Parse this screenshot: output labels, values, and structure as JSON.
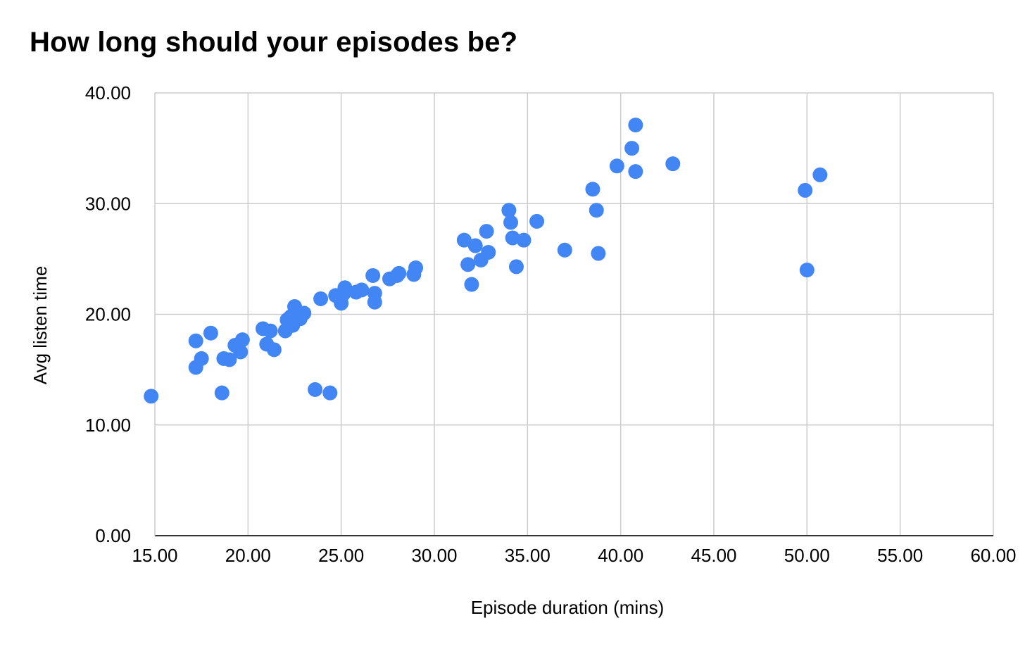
{
  "chart_data": {
    "type": "scatter",
    "title": "How long should your episodes be?",
    "xlabel": "Episode duration (mins)",
    "ylabel": "Avg listen time",
    "xlim": [
      15,
      60
    ],
    "ylim": [
      0,
      40
    ],
    "x_ticks": [
      "15.00",
      "20.00",
      "25.00",
      "30.00",
      "35.00",
      "40.00",
      "45.00",
      "50.00",
      "55.00",
      "60.00"
    ],
    "y_ticks": [
      "0.00",
      "10.00",
      "20.00",
      "30.00",
      "40.00"
    ],
    "grid": true,
    "legend": "none",
    "color": "#4285F4",
    "points": [
      [
        14.8,
        12.6
      ],
      [
        17.2,
        17.6
      ],
      [
        17.2,
        15.2
      ],
      [
        17.5,
        16.0
      ],
      [
        18.0,
        18.3
      ],
      [
        18.6,
        12.9
      ],
      [
        18.7,
        16.0
      ],
      [
        19.0,
        15.9
      ],
      [
        19.3,
        17.2
      ],
      [
        19.6,
        16.6
      ],
      [
        19.7,
        17.7
      ],
      [
        20.8,
        18.7
      ],
      [
        21.0,
        17.3
      ],
      [
        21.2,
        18.5
      ],
      [
        21.4,
        16.8
      ],
      [
        22.0,
        18.5
      ],
      [
        22.1,
        19.5
      ],
      [
        22.3,
        19.8
      ],
      [
        22.4,
        19.0
      ],
      [
        22.5,
        20.7
      ],
      [
        22.6,
        20.3
      ],
      [
        22.8,
        19.6
      ],
      [
        23.0,
        20.1
      ],
      [
        23.6,
        13.2
      ],
      [
        23.9,
        21.4
      ],
      [
        24.4,
        12.9
      ],
      [
        24.7,
        21.7
      ],
      [
        25.0,
        21.0
      ],
      [
        25.1,
        21.8
      ],
      [
        25.2,
        22.4
      ],
      [
        25.8,
        22.0
      ],
      [
        26.1,
        22.2
      ],
      [
        26.7,
        23.5
      ],
      [
        26.8,
        21.9
      ],
      [
        26.8,
        21.1
      ],
      [
        27.6,
        23.2
      ],
      [
        28.0,
        23.5
      ],
      [
        28.1,
        23.7
      ],
      [
        28.9,
        23.6
      ],
      [
        29.0,
        24.2
      ],
      [
        31.6,
        26.7
      ],
      [
        31.8,
        24.5
      ],
      [
        32.0,
        22.7
      ],
      [
        32.2,
        26.2
      ],
      [
        32.5,
        24.9
      ],
      [
        32.8,
        27.5
      ],
      [
        32.9,
        25.6
      ],
      [
        34.0,
        29.4
      ],
      [
        34.1,
        28.3
      ],
      [
        34.2,
        26.9
      ],
      [
        34.4,
        24.3
      ],
      [
        34.8,
        26.7
      ],
      [
        35.5,
        28.4
      ],
      [
        37.0,
        25.8
      ],
      [
        38.5,
        31.3
      ],
      [
        38.7,
        29.4
      ],
      [
        38.8,
        25.5
      ],
      [
        39.8,
        33.4
      ],
      [
        40.6,
        35.0
      ],
      [
        40.8,
        37.1
      ],
      [
        40.8,
        32.9
      ],
      [
        42.8,
        33.6
      ],
      [
        49.9,
        31.2
      ],
      [
        50.0,
        24.0
      ],
      [
        50.7,
        32.6
      ]
    ]
  }
}
